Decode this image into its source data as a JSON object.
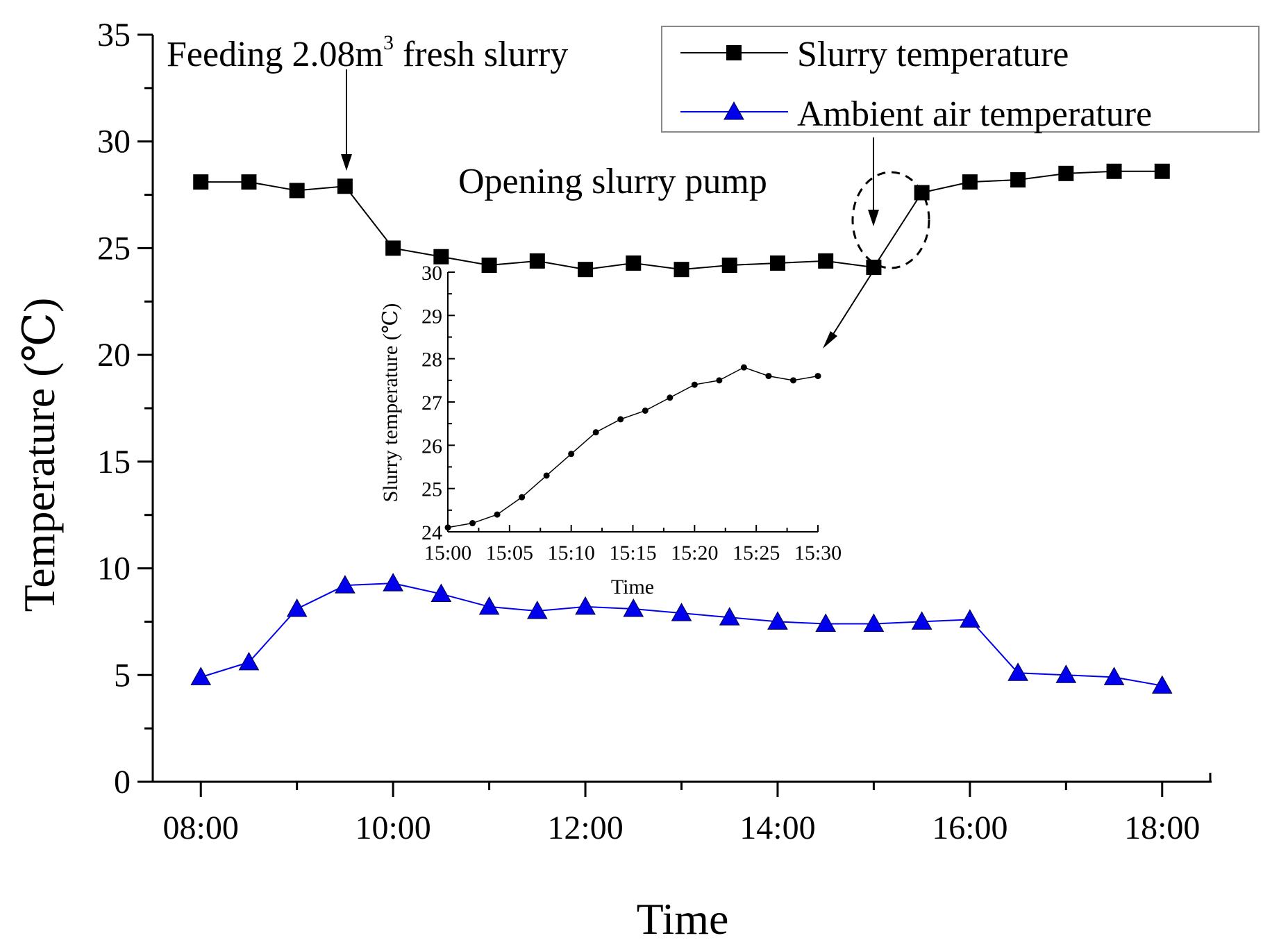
{
  "chart_data": {
    "type": "line",
    "xlabel": "Time",
    "ylabel": "Temperature (℃)",
    "ylim": [
      0,
      35
    ],
    "yticks": [
      "0",
      "5",
      "10",
      "15",
      "20",
      "25",
      "30",
      "35"
    ],
    "xlim_hours": [
      7.5,
      18.5
    ],
    "xticks": [
      "08:00",
      "10:00",
      "12:00",
      "14:00",
      "16:00",
      "18:00"
    ],
    "x": [
      8.0,
      8.5,
      9.0,
      9.5,
      10.0,
      10.5,
      11.0,
      11.5,
      12.0,
      12.5,
      13.0,
      13.5,
      14.0,
      14.5,
      15.0,
      15.5,
      16.0,
      16.5,
      17.0,
      17.5,
      18.0
    ],
    "series": [
      {
        "name": "Slurry temperature",
        "color": "#000000",
        "marker": "square",
        "values": [
          28.1,
          28.1,
          27.7,
          27.9,
          25.0,
          24.6,
          24.2,
          24.4,
          24.0,
          24.3,
          24.0,
          24.2,
          24.3,
          24.4,
          24.1,
          27.6,
          28.1,
          28.2,
          28.5,
          28.6,
          28.6
        ]
      },
      {
        "name": "Ambient air temperature",
        "color": "#0000ee",
        "marker": "triangle",
        "values": [
          4.9,
          5.6,
          8.1,
          9.2,
          9.3,
          8.8,
          8.2,
          8.0,
          8.2,
          8.1,
          7.9,
          7.7,
          7.5,
          7.4,
          7.4,
          7.5,
          7.6,
          5.1,
          5.0,
          4.9,
          4.5
        ]
      }
    ],
    "annotations": {
      "feeding_prefix": "Feeding 2.08m",
      "feeding_sup": "3",
      "feeding_suffix": " fresh slurry",
      "pump": "Opening slurry pump"
    },
    "legend": {
      "position": "top-right",
      "entries": [
        "Slurry temperature",
        "Ambient air temperature"
      ]
    },
    "inset": {
      "type": "line",
      "xlabel": "Time",
      "ylabel": "Slurry temperature (℃)",
      "ylim": [
        24,
        30
      ],
      "yticks": [
        "24",
        "25",
        "26",
        "27",
        "28",
        "29",
        "30"
      ],
      "xlim_minutes": [
        0,
        30
      ],
      "xticks": [
        "15:00",
        "15:05",
        "15:10",
        "15:15",
        "15:20",
        "15:25",
        "15:30"
      ],
      "x_minutes": [
        0,
        2,
        4,
        6,
        8,
        10,
        12,
        14,
        16,
        18,
        20,
        22,
        24,
        26,
        28,
        30
      ],
      "values": [
        24.1,
        24.2,
        24.4,
        24.8,
        25.3,
        25.8,
        26.3,
        26.6,
        26.8,
        27.1,
        27.4,
        27.5,
        27.8,
        27.6,
        27.5,
        27.6
      ]
    }
  }
}
